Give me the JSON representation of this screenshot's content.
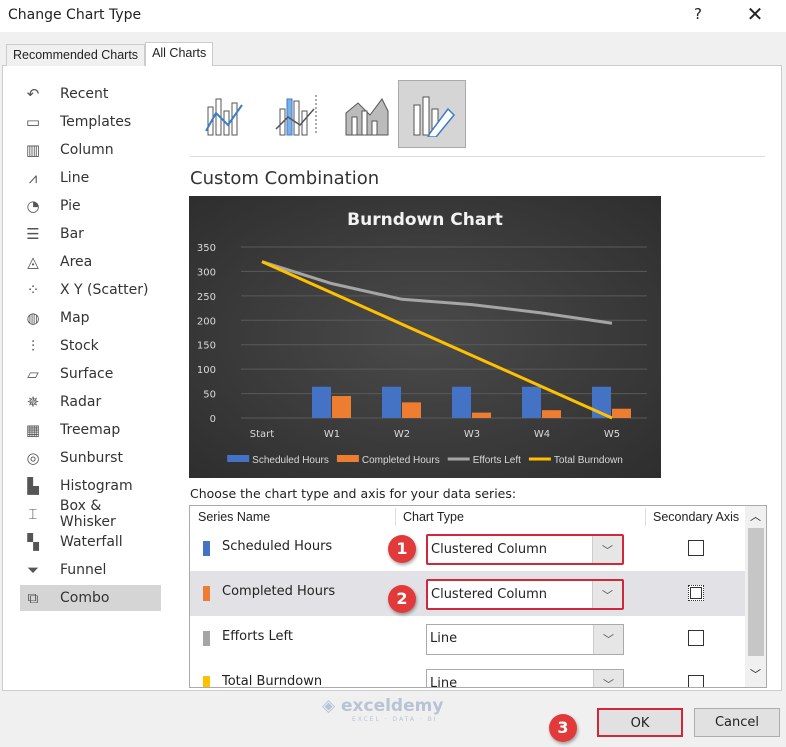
{
  "window": {
    "title": "Change Chart Type",
    "help": "?",
    "close": "✕"
  },
  "tabs": [
    {
      "label": "Recommended Charts"
    },
    {
      "label": "All Charts"
    }
  ],
  "sidebar": {
    "items": [
      {
        "label": "Recent",
        "icon": "recent-icon"
      },
      {
        "label": "Templates",
        "icon": "templates-icon"
      },
      {
        "label": "Column",
        "icon": "column-chart-icon"
      },
      {
        "label": "Line",
        "icon": "line-chart-icon"
      },
      {
        "label": "Pie",
        "icon": "pie-chart-icon"
      },
      {
        "label": "Bar",
        "icon": "bar-chart-icon"
      },
      {
        "label": "Area",
        "icon": "area-chart-icon"
      },
      {
        "label": "X Y (Scatter)",
        "icon": "scatter-chart-icon"
      },
      {
        "label": "Map",
        "icon": "map-chart-icon"
      },
      {
        "label": "Stock",
        "icon": "stock-chart-icon"
      },
      {
        "label": "Surface",
        "icon": "surface-chart-icon"
      },
      {
        "label": "Radar",
        "icon": "radar-chart-icon"
      },
      {
        "label": "Treemap",
        "icon": "treemap-icon"
      },
      {
        "label": "Sunburst",
        "icon": "sunburst-icon"
      },
      {
        "label": "Histogram",
        "icon": "histogram-icon"
      },
      {
        "label": "Box & Whisker",
        "icon": "box-whisker-icon"
      },
      {
        "label": "Waterfall",
        "icon": "waterfall-icon"
      },
      {
        "label": "Funnel",
        "icon": "funnel-icon"
      },
      {
        "label": "Combo",
        "icon": "combo-chart-icon",
        "selected": true
      }
    ]
  },
  "combo_title": "Custom Combination",
  "chart_data": {
    "type": "bar",
    "title": "Burndown Chart",
    "categories": [
      "Start",
      "W1",
      "W2",
      "W3",
      "W4",
      "W5"
    ],
    "ylim": [
      0,
      350
    ],
    "yticks": [
      0,
      50,
      100,
      150,
      200,
      250,
      300,
      350
    ],
    "grid": true,
    "legend": "bottom",
    "series": [
      {
        "name": "Scheduled Hours",
        "type": "bar",
        "color": "#4472c4",
        "values": [
          null,
          64,
          64,
          64,
          64,
          64
        ]
      },
      {
        "name": "Completed Hours",
        "type": "bar",
        "color": "#ed7d31",
        "values": [
          null,
          45,
          32,
          11,
          16,
          19
        ]
      },
      {
        "name": "Efforts Left",
        "type": "line",
        "color": "#a5a5a5",
        "values": [
          320,
          275,
          243,
          232,
          215,
          194
        ]
      },
      {
        "name": "Total Burndown",
        "type": "line",
        "color": "#ffc000",
        "values": [
          320,
          256,
          192,
          128,
          64,
          0
        ]
      }
    ]
  },
  "series_table": {
    "prompt": "Choose the chart type and axis for your data series:",
    "headers": [
      "Series Name",
      "Chart Type",
      "Secondary Axis"
    ],
    "rows": [
      {
        "name": "Scheduled Hours",
        "color": "#4472c4",
        "type": "Clustered Column",
        "badge": "1"
      },
      {
        "name": "Completed Hours",
        "color": "#ed7d31",
        "type": "Clustered Column",
        "badge": "2"
      },
      {
        "name": "Efforts Left",
        "color": "#a5a5a5",
        "type": "Line"
      },
      {
        "name": "Total Burndown",
        "color": "#ffc000",
        "type": "Line"
      }
    ]
  },
  "buttons": {
    "ok": "OK",
    "cancel": "Cancel",
    "ok_badge": "3"
  },
  "watermark": {
    "name": "exceldemy",
    "tagline": "EXCEL · DATA · BI"
  }
}
